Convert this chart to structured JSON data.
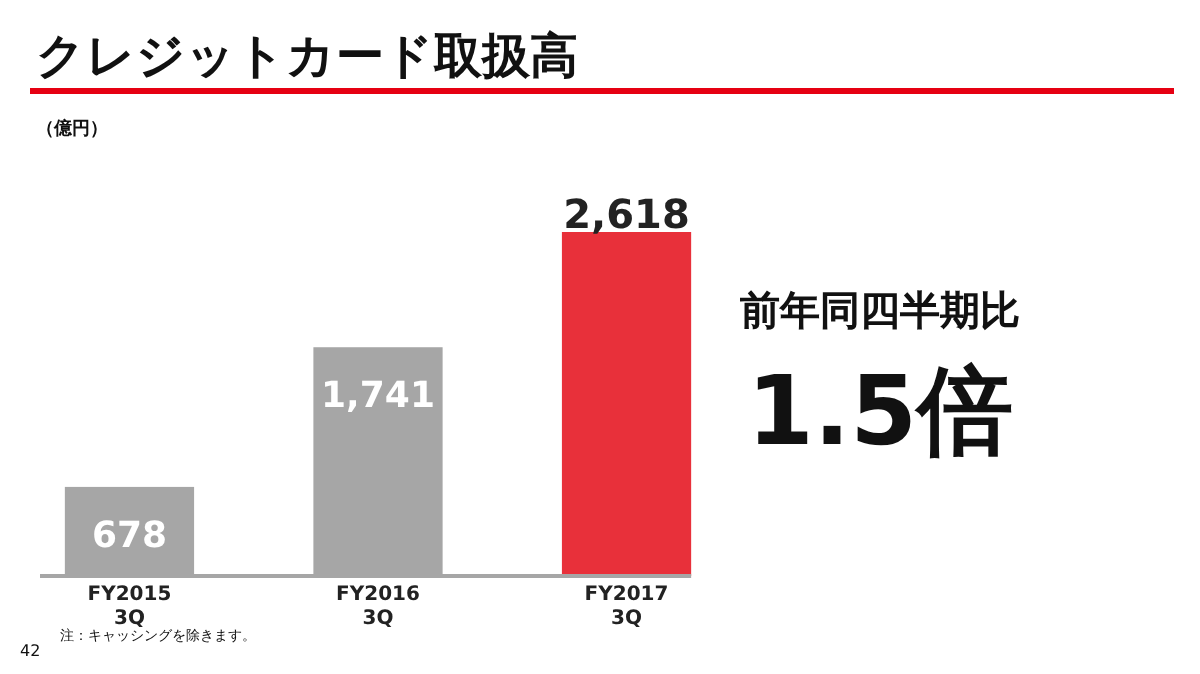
{
  "chart_data": {
    "type": "bar",
    "title": "クレジットカード取扱高",
    "categories": [
      "FY2015 3Q",
      "FY2016 3Q",
      "FY2017 3Q"
    ],
    "values": [
      678,
      1741,
      2618
    ],
    "value_labels": [
      "678",
      "1,741",
      "2,618"
    ],
    "colors": [
      "#a6a6a6",
      "#a6a6a6",
      "#e8303a"
    ],
    "annotations": [
      "（億円）",
      "前年同四半期比",
      "1.5倍",
      "42",
      "注：キャッシングを除きます。"
    ]
  }
}
